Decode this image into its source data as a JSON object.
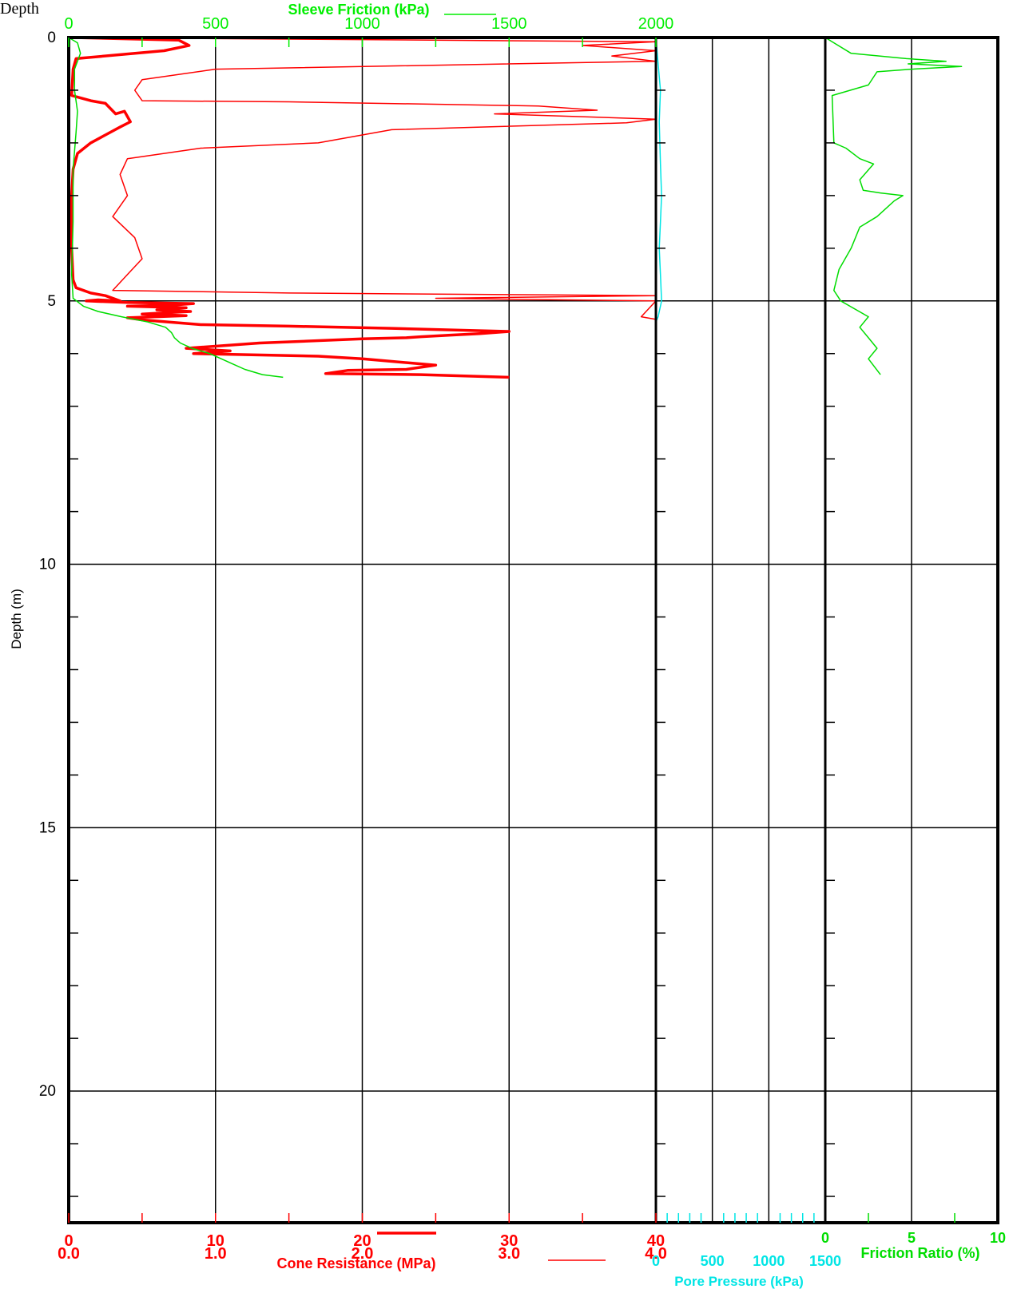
{
  "header_text": "Depth",
  "chart_data": [
    {
      "type": "line",
      "panel": "cone-resistance",
      "top_axis": {
        "label": "Sleeve Friction (kPa)",
        "ticks": [
          "0",
          "500",
          "1000",
          "1500",
          "2000"
        ],
        "range": [
          0,
          2000
        ],
        "color": "#00ee00"
      },
      "bottom_axis": {
        "label": "Cone Resistance (MPa)",
        "ticks_primary": [
          "0",
          "10",
          "20",
          "30",
          "40"
        ],
        "range_primary": [
          0,
          40
        ],
        "ticks_secondary": [
          "0.0",
          "1.0",
          "2.0",
          "3.0",
          "4.0"
        ],
        "range_secondary": [
          0,
          4
        ],
        "color": "#ff0000"
      },
      "y_axis": {
        "label": "Depth (m)",
        "ticks": [
          "0",
          "5",
          "10",
          "15",
          "20"
        ],
        "range": [
          0,
          22.5
        ],
        "inverted": true
      },
      "grid": true,
      "series": [
        {
          "key": "qc_thick",
          "axis": "primary",
          "color": "#ff0000",
          "width": 3.5,
          "points": [
            [
              0.3,
              0.0
            ],
            [
              7.5,
              0.05
            ],
            [
              8.2,
              0.15
            ],
            [
              6.5,
              0.25
            ],
            [
              0.5,
              0.4
            ],
            [
              0.3,
              0.6
            ],
            [
              0.2,
              1.1
            ],
            [
              1.5,
              1.2
            ],
            [
              2.5,
              1.25
            ],
            [
              3.2,
              1.45
            ],
            [
              3.8,
              1.4
            ],
            [
              4.2,
              1.6
            ],
            [
              3.5,
              1.7
            ],
            [
              2.5,
              1.85
            ],
            [
              1.5,
              2.0
            ],
            [
              0.6,
              2.2
            ],
            [
              0.3,
              2.5
            ],
            [
              0.2,
              3.0
            ],
            [
              0.2,
              4.0
            ],
            [
              0.3,
              4.6
            ],
            [
              0.5,
              4.75
            ],
            [
              1.5,
              4.85
            ],
            [
              2.5,
              4.9
            ],
            [
              3.5,
              5.0
            ],
            [
              2.0,
              4.98
            ],
            [
              1.2,
              5.0
            ],
            [
              4.0,
              5.03
            ],
            [
              8.5,
              5.05
            ],
            [
              7.0,
              5.08
            ],
            [
              4.0,
              5.1
            ],
            [
              8.0,
              5.13
            ],
            [
              6.0,
              5.17
            ],
            [
              8.3,
              5.2
            ],
            [
              5.0,
              5.25
            ],
            [
              8.0,
              5.28
            ],
            [
              4.0,
              5.32
            ],
            [
              5.0,
              5.36
            ],
            [
              9.0,
              5.45
            ],
            [
              15.0,
              5.48
            ],
            [
              22.0,
              5.52
            ],
            [
              30.0,
              5.58
            ],
            [
              28.0,
              5.62
            ],
            [
              26.0,
              5.65
            ],
            [
              24.0,
              5.68
            ],
            [
              23.0,
              5.7
            ],
            [
              20.0,
              5.72
            ],
            [
              13.0,
              5.8
            ],
            [
              8.0,
              5.9
            ],
            [
              11.0,
              5.95
            ],
            [
              8.5,
              6.0
            ],
            [
              17.0,
              6.05
            ],
            [
              20.0,
              6.1
            ],
            [
              25.0,
              6.22
            ],
            [
              23.0,
              6.3
            ],
            [
              19.0,
              6.32
            ],
            [
              17.5,
              6.38
            ],
            [
              24.0,
              6.4
            ],
            [
              30.0,
              6.45
            ]
          ]
        },
        {
          "key": "qc_thin",
          "axis": "secondary",
          "color": "#ff0000",
          "width": 1.5,
          "points": [
            [
              0.0,
              0.0
            ],
            [
              4.0,
              0.08
            ],
            [
              3.5,
              0.15
            ],
            [
              4.0,
              0.25
            ],
            [
              3.7,
              0.35
            ],
            [
              4.0,
              0.45
            ],
            [
              1.0,
              0.6
            ],
            [
              0.5,
              0.8
            ],
            [
              0.45,
              1.0
            ],
            [
              0.5,
              1.2
            ],
            [
              1.5,
              1.22
            ],
            [
              3.2,
              1.3
            ],
            [
              3.6,
              1.38
            ],
            [
              2.9,
              1.45
            ],
            [
              4.0,
              1.55
            ],
            [
              3.8,
              1.62
            ],
            [
              2.2,
              1.75
            ],
            [
              1.7,
              2.0
            ],
            [
              0.9,
              2.1
            ],
            [
              0.4,
              2.3
            ],
            [
              0.35,
              2.6
            ],
            [
              0.4,
              3.0
            ],
            [
              0.3,
              3.4
            ],
            [
              0.45,
              3.8
            ],
            [
              0.5,
              4.2
            ],
            [
              0.4,
              4.5
            ],
            [
              0.3,
              4.8
            ],
            [
              1.5,
              4.85
            ],
            [
              4.0,
              4.9
            ],
            [
              2.5,
              4.95
            ],
            [
              4.0,
              5.0
            ],
            [
              3.9,
              5.3
            ],
            [
              4.0,
              5.35
            ],
            [
              4.0,
              6.45
            ]
          ]
        },
        {
          "key": "fs",
          "axis": "top",
          "color": "#00dd00",
          "width": 1.5,
          "points": [
            [
              0,
              0.0
            ],
            [
              30,
              0.1
            ],
            [
              40,
              0.3
            ],
            [
              20,
              0.6
            ],
            [
              20,
              1.0
            ],
            [
              30,
              1.4
            ],
            [
              25,
              1.8
            ],
            [
              15,
              2.5
            ],
            [
              15,
              3.5
            ],
            [
              10,
              4.5
            ],
            [
              15,
              4.95
            ],
            [
              50,
              5.1
            ],
            [
              100,
              5.2
            ],
            [
              180,
              5.3
            ],
            [
              270,
              5.4
            ],
            [
              330,
              5.5
            ],
            [
              350,
              5.6
            ],
            [
              360,
              5.7
            ],
            [
              380,
              5.8
            ],
            [
              420,
              5.9
            ],
            [
              480,
              6.0
            ],
            [
              520,
              6.1
            ],
            [
              560,
              6.2
            ],
            [
              600,
              6.3
            ],
            [
              660,
              6.4
            ],
            [
              730,
              6.45
            ]
          ]
        }
      ]
    },
    {
      "type": "line",
      "panel": "pore-pressure",
      "bottom_axis": {
        "label": "Pore Pressure (kPa)",
        "ticks": [
          "0",
          "500",
          "1000",
          "1500"
        ],
        "range": [
          0,
          1500
        ],
        "color": "#00e5e5"
      },
      "series": [
        {
          "key": "u2",
          "color": "#00e5e5",
          "width": 1.5,
          "points": [
            [
              0,
              0.0
            ],
            [
              20,
              0.5
            ],
            [
              40,
              1.0
            ],
            [
              30,
              1.6
            ],
            [
              40,
              2.4
            ],
            [
              50,
              3.0
            ],
            [
              40,
              3.5
            ],
            [
              30,
              4.0
            ],
            [
              40,
              4.5
            ],
            [
              50,
              5.0
            ],
            [
              20,
              5.3
            ],
            [
              0,
              5.4
            ],
            [
              0,
              6.45
            ]
          ]
        }
      ]
    },
    {
      "type": "line",
      "panel": "friction-ratio",
      "bottom_axis": {
        "label": "Friction Ratio (%)",
        "ticks": [
          "0",
          "5",
          "10"
        ],
        "range": [
          0,
          10
        ],
        "color": "#00dd00"
      },
      "series": [
        {
          "key": "rf",
          "color": "#00dd00",
          "width": 1.5,
          "points": [
            [
              0,
              0.0
            ],
            [
              0.5,
              0.1
            ],
            [
              1.5,
              0.3
            ],
            [
              4.7,
              0.4
            ],
            [
              7.0,
              0.45
            ],
            [
              4.8,
              0.5
            ],
            [
              7.9,
              0.55
            ],
            [
              5.0,
              0.6
            ],
            [
              3.0,
              0.65
            ],
            [
              2.5,
              0.9
            ],
            [
              0.4,
              1.1
            ],
            [
              0.5,
              2.0
            ],
            [
              1.2,
              2.1
            ],
            [
              2.0,
              2.3
            ],
            [
              2.8,
              2.4
            ],
            [
              2.0,
              2.7
            ],
            [
              2.2,
              2.9
            ],
            [
              3.2,
              2.95
            ],
            [
              4.5,
              3.0
            ],
            [
              4.0,
              3.1
            ],
            [
              3.0,
              3.4
            ],
            [
              2.0,
              3.6
            ],
            [
              1.5,
              4.0
            ],
            [
              0.8,
              4.4
            ],
            [
              0.5,
              4.8
            ],
            [
              0.9,
              5.0
            ],
            [
              2.5,
              5.3
            ],
            [
              2.0,
              5.5
            ],
            [
              2.5,
              5.7
            ],
            [
              3.0,
              5.9
            ],
            [
              2.5,
              6.1
            ],
            [
              3.2,
              6.4
            ]
          ]
        }
      ]
    }
  ]
}
